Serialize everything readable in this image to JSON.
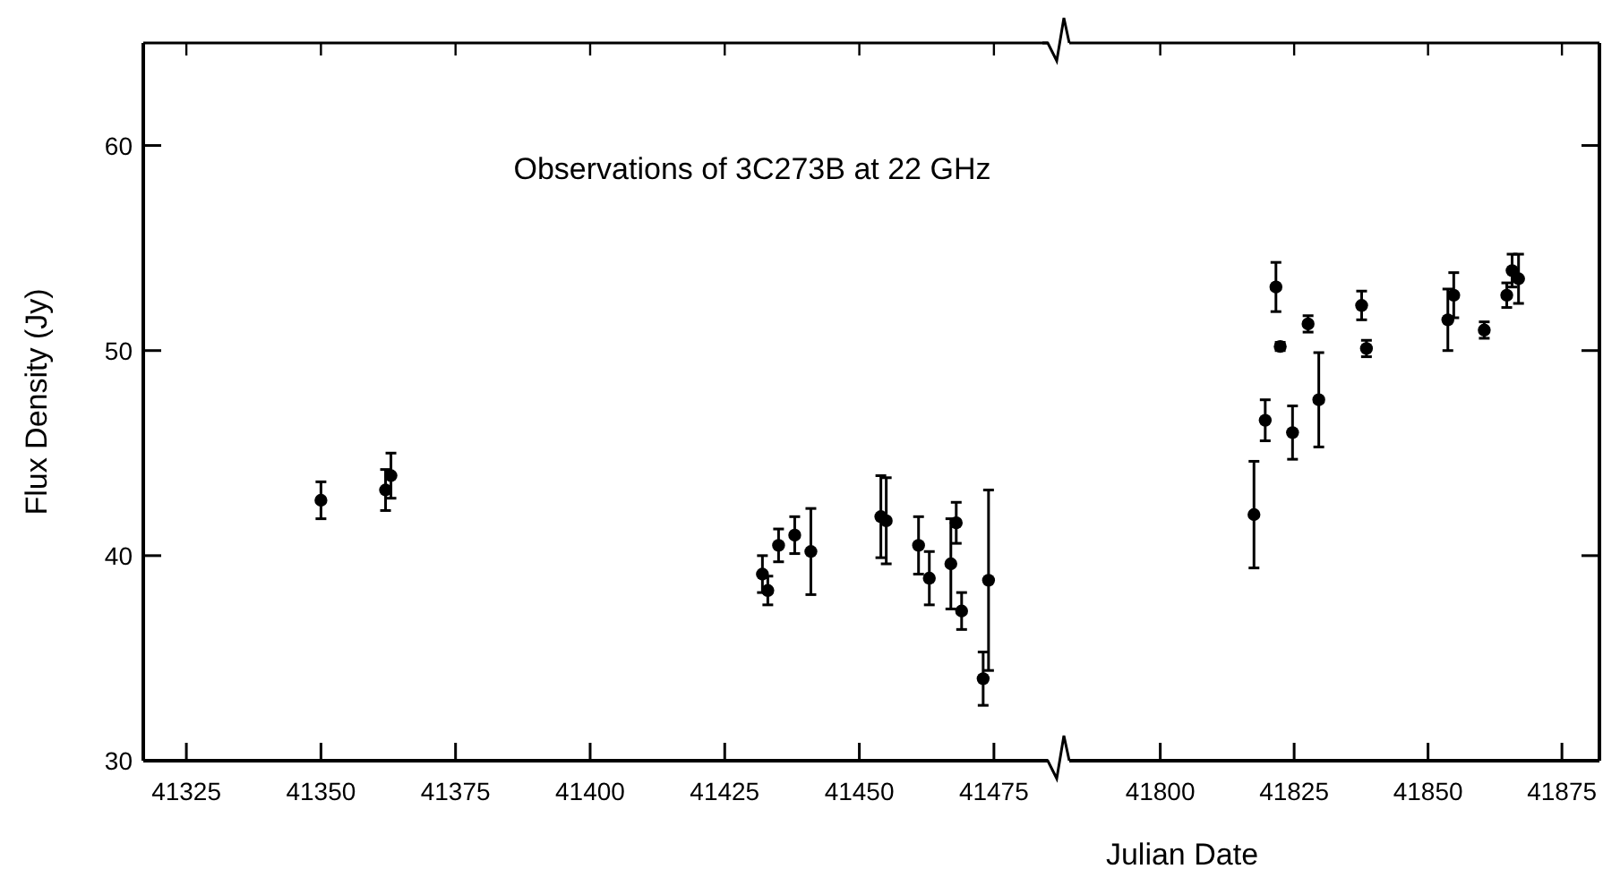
{
  "chart_data": [
    {
      "type": "scatter",
      "title": "Observations of 3C273B at 22 GHz",
      "ylabel": "Flux Density (Jy)",
      "xlim": [
        41317,
        41486
      ],
      "xticks": [
        41325,
        41350,
        41375,
        41400,
        41425,
        41450,
        41475
      ],
      "ylim": [
        30,
        65
      ],
      "yticks": [
        30,
        40,
        50,
        60
      ],
      "marker": "circle",
      "series": [
        {
          "color": "#000000",
          "x": [
            41350,
            41362,
            41363,
            41432,
            41433,
            41435,
            41438,
            41441,
            41454,
            41455,
            41461,
            41463,
            41467,
            41468,
            41469,
            41473,
            41474
          ],
          "values": [
            42.7,
            43.2,
            43.9,
            39.1,
            38.3,
            40.5,
            41.0,
            40.2,
            41.9,
            41.7,
            40.5,
            38.9,
            39.6,
            41.6,
            37.3,
            34.0,
            38.8
          ],
          "errors": [
            0.9,
            1.0,
            1.1,
            0.9,
            0.7,
            0.8,
            0.9,
            2.1,
            2.0,
            2.1,
            1.4,
            1.3,
            2.2,
            1.0,
            0.9,
            1.3,
            4.4
          ]
        }
      ]
    },
    {
      "type": "scatter",
      "xlabel": "Julian Date",
      "xlim": [
        41780,
        41882
      ],
      "xticks": [
        41800,
        41825,
        41850,
        41875
      ],
      "ylim": [
        30,
        65
      ],
      "yticks": [
        30,
        40,
        50,
        60
      ],
      "tick_labels": "x",
      "marker": "circle",
      "series": [
        {
          "color": "#000000",
          "x": [
            41817.5,
            41819.6,
            41821.6,
            41822.4,
            41824.7,
            41827.6,
            41829.6,
            41837.6,
            41838.5,
            41853.7,
            41854.8,
            41860.5,
            41864.7,
            41865.7,
            41866.9
          ],
          "values": [
            42.0,
            46.6,
            53.1,
            50.2,
            46.0,
            51.3,
            47.6,
            52.2,
            50.1,
            51.5,
            52.7,
            51.0,
            52.7,
            53.9,
            53.5
          ],
          "errors": [
            2.6,
            1.0,
            1.2,
            0.2,
            1.3,
            0.4,
            2.3,
            0.7,
            0.4,
            1.5,
            1.1,
            0.4,
            0.6,
            0.8,
            1.2
          ]
        }
      ]
    }
  ]
}
